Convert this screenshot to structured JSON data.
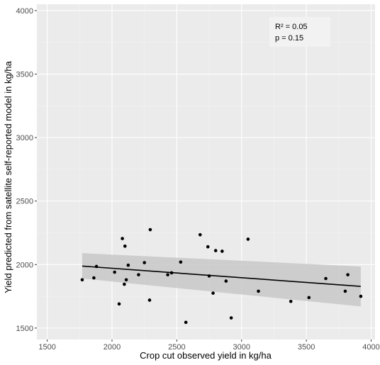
{
  "chart_data": {
    "type": "scatter",
    "title": "",
    "xlabel": "Crop cut observed yield in kg/ha",
    "ylabel": "Yield predicted from satellite self-reported model in kg/ha",
    "xlim": [
      1420,
      4030
    ],
    "ylim": [
      1410,
      4050
    ],
    "xticks": [
      1500,
      2000,
      2500,
      3000,
      3500,
      4000
    ],
    "yticks": [
      1500,
      2000,
      2500,
      3000,
      3500,
      4000
    ],
    "grid": true,
    "annotation": {
      "line1": "R² = 0.05",
      "line2": "p = 0.15",
      "position": "top-right"
    },
    "points": [
      {
        "x": 1770,
        "y": 1880
      },
      {
        "x": 1860,
        "y": 1895
      },
      {
        "x": 1880,
        "y": 1985
      },
      {
        "x": 2020,
        "y": 1940
      },
      {
        "x": 2055,
        "y": 1690
      },
      {
        "x": 2080,
        "y": 2205
      },
      {
        "x": 2095,
        "y": 1845
      },
      {
        "x": 2100,
        "y": 2145
      },
      {
        "x": 2110,
        "y": 1880
      },
      {
        "x": 2125,
        "y": 1995
      },
      {
        "x": 2205,
        "y": 1920
      },
      {
        "x": 2250,
        "y": 2015
      },
      {
        "x": 2290,
        "y": 1720
      },
      {
        "x": 2295,
        "y": 2275
      },
      {
        "x": 2430,
        "y": 1920
      },
      {
        "x": 2460,
        "y": 1935
      },
      {
        "x": 2530,
        "y": 2020
      },
      {
        "x": 2570,
        "y": 1545
      },
      {
        "x": 2680,
        "y": 2235
      },
      {
        "x": 2740,
        "y": 2140
      },
      {
        "x": 2750,
        "y": 1910
      },
      {
        "x": 2780,
        "y": 1775
      },
      {
        "x": 2800,
        "y": 2110
      },
      {
        "x": 2850,
        "y": 2105
      },
      {
        "x": 2880,
        "y": 1870
      },
      {
        "x": 2920,
        "y": 1580
      },
      {
        "x": 3050,
        "y": 2200
      },
      {
        "x": 3130,
        "y": 1790
      },
      {
        "x": 3380,
        "y": 1710
      },
      {
        "x": 3520,
        "y": 1740
      },
      {
        "x": 3650,
        "y": 1890
      },
      {
        "x": 3800,
        "y": 1790
      },
      {
        "x": 3820,
        "y": 1920
      },
      {
        "x": 3920,
        "y": 1750
      }
    ],
    "fit": {
      "x": [
        1770,
        3920
      ],
      "y": [
        1988,
        1828
      ],
      "ci_upper": [
        2090,
        1985
      ],
      "ci_lower": [
        1890,
        1670
      ]
    },
    "colors": {
      "panel": "#ebebeb",
      "grid_major": "#ffffff",
      "grid_minor": "#f3f3f3",
      "points": "#000000",
      "fit_line": "#000000",
      "ribbon": "#c8c8c8"
    }
  }
}
